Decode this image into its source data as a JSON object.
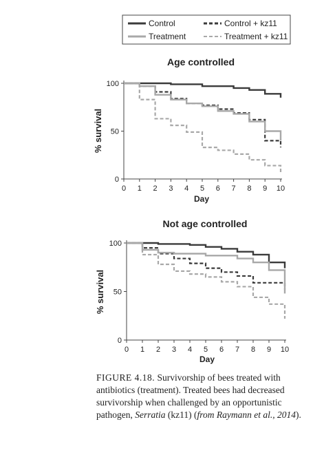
{
  "legend": {
    "entries": [
      {
        "label": "Control",
        "color": "#3a3a3a",
        "dash": "solid"
      },
      {
        "label": "Control + kz11",
        "color": "#3a3a3a",
        "dash": "dashed"
      },
      {
        "label": "Treatment",
        "color": "#a8a8a8",
        "dash": "solid"
      },
      {
        "label": "Treatment + kz11",
        "color": "#a8a8a8",
        "dash": "dashed"
      }
    ]
  },
  "chart_data": [
    {
      "type": "line",
      "step": true,
      "title": "Age controlled",
      "xlabel": "Day",
      "ylabel": "% survival",
      "xlim": [
        0,
        10
      ],
      "ylim": [
        0,
        100
      ],
      "x_ticks": [
        "0",
        "1",
        "2",
        "3",
        "4",
        "5",
        "6",
        "7",
        "8",
        "9",
        "10"
      ],
      "y_ticks": [
        "0",
        "50",
        "100"
      ],
      "series": [
        {
          "name": "Control",
          "x": [
            0,
            2.5,
            3,
            5,
            7,
            8,
            9,
            10
          ],
          "y": [
            100,
            100,
            99,
            97,
            95,
            93,
            89,
            85
          ]
        },
        {
          "name": "Control + kz11",
          "x": [
            0,
            1,
            2,
            3,
            4,
            5,
            6,
            7,
            8,
            9,
            10
          ],
          "y": [
            100,
            97,
            91,
            84,
            79,
            77,
            73,
            69,
            62,
            40,
            33
          ]
        },
        {
          "name": "Treatment",
          "x": [
            0,
            1,
            2,
            3,
            4,
            5,
            6,
            7,
            8,
            9,
            10
          ],
          "y": [
            100,
            97,
            88,
            83,
            79,
            76,
            71,
            68,
            60,
            50,
            40
          ]
        },
        {
          "name": "Treatment + kz11",
          "x": [
            0,
            1,
            2,
            3,
            4,
            5,
            6,
            7,
            8,
            9,
            10
          ],
          "y": [
            100,
            83,
            63,
            56,
            49,
            33,
            30,
            26,
            20,
            14,
            7
          ]
        }
      ]
    },
    {
      "type": "line",
      "step": true,
      "title": "Not age controlled",
      "xlabel": "Day",
      "ylabel": "% survival",
      "xlim": [
        0,
        10
      ],
      "ylim": [
        0,
        100
      ],
      "x_ticks": [
        "0",
        "1",
        "2",
        "3",
        "4",
        "5",
        "6",
        "7",
        "8",
        "9",
        "10"
      ],
      "y_ticks": [
        "0",
        "50",
        "100"
      ],
      "series": [
        {
          "name": "Control",
          "x": [
            0,
            2,
            4,
            5,
            6,
            7,
            8,
            9,
            10
          ],
          "y": [
            100,
            99,
            98,
            96,
            94,
            91,
            88,
            80,
            74
          ]
        },
        {
          "name": "Control + kz11",
          "x": [
            0,
            1,
            2,
            3,
            4,
            5,
            6,
            7,
            8,
            9,
            10
          ],
          "y": [
            100,
            95,
            89,
            84,
            79,
            74,
            70,
            66,
            59,
            59,
            52
          ]
        },
        {
          "name": "Treatment",
          "x": [
            0,
            1,
            2,
            3,
            5,
            7,
            8,
            9,
            10
          ],
          "y": [
            100,
            93,
            90,
            89,
            87,
            84,
            80,
            72,
            48
          ]
        },
        {
          "name": "Treatment + kz11",
          "x": [
            0,
            1,
            2,
            3,
            4,
            5,
            6,
            7,
            8,
            9,
            10
          ],
          "y": [
            100,
            88,
            78,
            71,
            68,
            65,
            60,
            55,
            44,
            37,
            22
          ]
        }
      ]
    }
  ],
  "caption": {
    "label": "FIGURE 4.18.",
    "text1": " Survivorship of bees treated with antibiotics (treatment). Treated bees had decreased survivorship when challenged by an opportunistic pathogen, ",
    "italic1": "Serratia",
    "text2": " (kz11) (",
    "italic2": "from Raymann et al., 2014",
    "text3": ")."
  }
}
